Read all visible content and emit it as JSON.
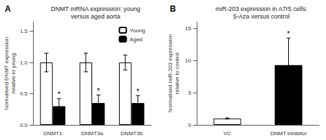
{
  "chart_data": [
    {
      "type": "bar",
      "panel_label": "A",
      "title": "DNMT mRNA expression: young\nversus aged aorta",
      "ylabel": "Normalised DNMT expression\nrelative to young",
      "categories": [
        "DNMT1",
        "DNMT3a",
        "DNMT3b"
      ],
      "series": [
        {
          "name": "Young",
          "color": "white",
          "values": [
            1.0,
            1.0,
            1.0
          ],
          "errors": [
            0.15,
            0.15,
            0.12
          ]
        },
        {
          "name": "Aged",
          "color": "black",
          "values": [
            0.3,
            0.35,
            0.35
          ],
          "errors": [
            0.12,
            0.13,
            0.12
          ]
        }
      ],
      "ylim": [
        0,
        1.65
      ],
      "yticks": [
        {
          "value": 0,
          "label": "0.0"
        },
        0.5,
        {
          "value": 1,
          "label": "1.0"
        },
        1.5
      ],
      "grid": false,
      "legend": "upper right",
      "annotations": [
        {
          "text": "*",
          "series": "Aged",
          "category": "DNMT1"
        },
        {
          "text": "*",
          "series": "Aged",
          "category": "DNMT3a"
        },
        {
          "text": "*",
          "series": "Aged",
          "category": "DNMT3b"
        }
      ]
    },
    {
      "type": "bar",
      "panel_label": "B",
      "title": "miR-203 expression in A7r5 cells:\n5-Aza versus control",
      "ylabel": "Normalised miR-203 expression\nrelative to control",
      "categories": [
        "VC",
        "DNMT inhibitor"
      ],
      "values": [
        1.0,
        9.3
      ],
      "errors": [
        0.08,
        4.2
      ],
      "colors": [
        "white",
        "black"
      ],
      "ylim": [
        0,
        16
      ],
      "yticks": [
        0,
        5,
        10,
        15
      ],
      "grid": false,
      "annotations": [
        {
          "text": "*",
          "category": "DNMT inhibitor"
        }
      ]
    }
  ]
}
